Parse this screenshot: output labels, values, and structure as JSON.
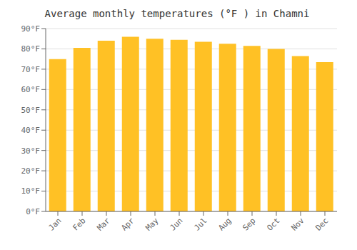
{
  "chart_data": {
    "type": "bar",
    "title": "Average monthly temperatures (°F ) in Chamni",
    "categories": [
      "Jan",
      "Feb",
      "Mar",
      "Apr",
      "May",
      "Jun",
      "Jul",
      "Aug",
      "Sep",
      "Oct",
      "Nov",
      "Dec"
    ],
    "values": [
      75,
      80.5,
      84,
      86,
      85,
      84.5,
      83.5,
      82.5,
      81.5,
      80,
      76.5,
      73.5
    ],
    "color": "#FFC125",
    "ylim": [
      0,
      90
    ],
    "yticks": [
      {
        "value": 0,
        "label": "0°F"
      },
      {
        "value": 10,
        "label": "10°F"
      },
      {
        "value": 20,
        "label": "20°F"
      },
      {
        "value": 30,
        "label": "30°F"
      },
      {
        "value": 40,
        "label": "40°F"
      },
      {
        "value": 50,
        "label": "50°F"
      },
      {
        "value": 60,
        "label": "60°F"
      },
      {
        "value": 70,
        "label": "70°F"
      },
      {
        "value": 80,
        "label": "80°F"
      },
      {
        "value": 90,
        "label": "90°F"
      }
    ],
    "grid": true
  }
}
